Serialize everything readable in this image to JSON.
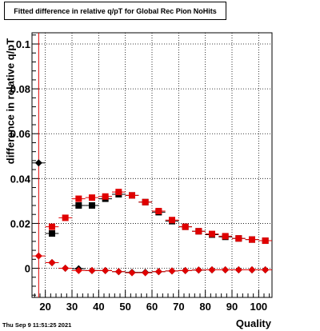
{
  "title": "Fitted difference in relative q/pT for Global Rec Pion NoHits",
  "footer": "Thu Sep  9 11:51:25 2021",
  "chart_data": {
    "type": "scatter",
    "title": "Fitted difference in relative q/pT for Global Rec Pion NoHits",
    "xlabel": "Quality",
    "ylabel": "difference in relative q/pT",
    "xlim": [
      15,
      105
    ],
    "ylim": [
      -0.013,
      0.105
    ],
    "xticks": [
      "20",
      "30",
      "40",
      "50",
      "60",
      "70",
      "80",
      "90",
      "100"
    ],
    "xtick_values": [
      20,
      30,
      40,
      50,
      60,
      70,
      80,
      90,
      100
    ],
    "yticks": [
      "0",
      "0.02",
      "0.04",
      "0.06",
      "0.08",
      "0.1"
    ],
    "ytick_values": [
      0,
      0.02,
      0.04,
      0.06,
      0.08,
      0.1
    ],
    "grid": true,
    "vertical_line_x": 17.5,
    "series": [
      {
        "marker": "square",
        "color": "#000000",
        "x": [
          22.5,
          32.5,
          37.5,
          42.5,
          47.5,
          52.5,
          57.5,
          62.5,
          67.5,
          72.5,
          77.5,
          82.5,
          87.5,
          92.5,
          97.5,
          102.5
        ],
        "y": [
          0.0155,
          0.028,
          0.028,
          0.031,
          0.033,
          0.0325,
          0.0295,
          0.025,
          0.021,
          0.0185,
          0.0165,
          0.015,
          0.014,
          0.0133,
          0.0128,
          0.0123
        ]
      },
      {
        "marker": "diamond",
        "color": "#000000",
        "x": [
          17.5,
          22.5,
          27.5,
          32.5,
          37.5,
          42.5,
          47.5,
          52.5,
          57.5,
          62.5,
          67.5,
          72.5,
          77.5,
          82.5,
          87.5,
          92.5,
          97.5,
          102.5
        ],
        "y": [
          0.047,
          0.0025,
          0.0,
          -0.0002,
          -0.001,
          -0.001,
          -0.0015,
          -0.0018,
          -0.0018,
          -0.0015,
          -0.0012,
          -0.001,
          -0.0008,
          -0.0007,
          -0.0007,
          -0.0007,
          -0.0007,
          -0.0007
        ]
      },
      {
        "marker": "square",
        "color": "#e00000",
        "x": [
          22.5,
          27.5,
          32.5,
          37.5,
          42.5,
          47.5,
          52.5,
          57.5,
          62.5,
          67.5,
          72.5,
          77.5,
          82.5,
          87.5,
          92.5,
          97.5,
          102.5
        ],
        "y": [
          0.0185,
          0.0225,
          0.031,
          0.0315,
          0.032,
          0.034,
          0.0325,
          0.0295,
          0.0255,
          0.0215,
          0.0185,
          0.0165,
          0.0153,
          0.0143,
          0.0133,
          0.0128,
          0.0123
        ]
      },
      {
        "marker": "diamond",
        "color": "#e00000",
        "x": [
          17.5,
          22.5,
          27.5,
          32.5,
          37.5,
          42.5,
          47.5,
          52.5,
          57.5,
          62.5,
          67.5,
          72.5,
          77.5,
          82.5,
          87.5,
          92.5,
          97.5,
          102.5
        ],
        "y": [
          0.0055,
          0.0025,
          0.0,
          -0.001,
          -0.001,
          -0.001,
          -0.0015,
          -0.002,
          -0.002,
          -0.0015,
          -0.0012,
          -0.001,
          -0.0008,
          -0.0007,
          -0.0007,
          -0.0007,
          -0.0007,
          -0.0007
        ]
      }
    ]
  }
}
